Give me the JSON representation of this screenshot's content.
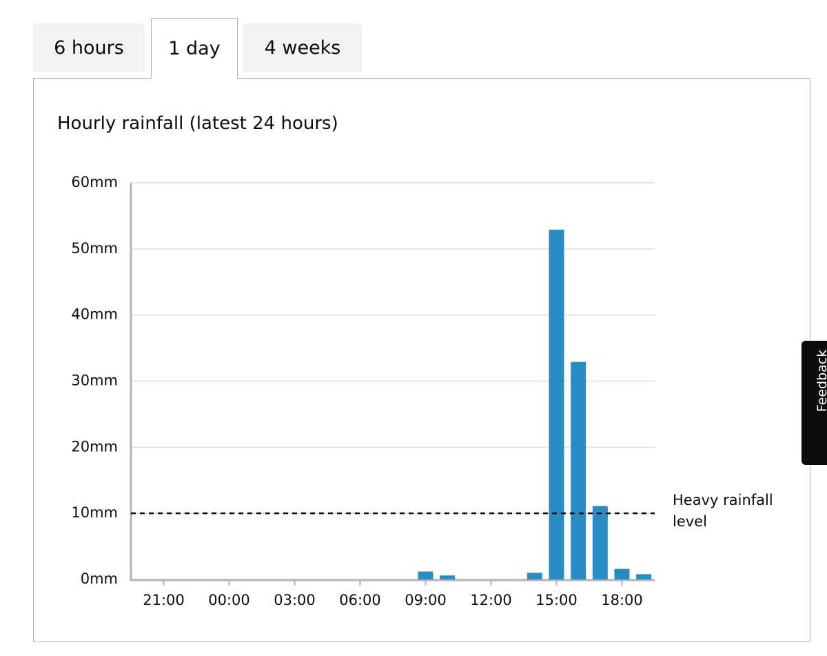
{
  "tabs": [
    {
      "label": "6 hours",
      "active": false
    },
    {
      "label": "1 day",
      "active": true
    },
    {
      "label": "4 weeks",
      "active": false
    }
  ],
  "feedback_tab": {
    "label": "Feedback"
  },
  "chart_data": {
    "type": "bar",
    "title": "Hourly rainfall (latest 24 hours)",
    "categories": [
      null,
      "21:00",
      null,
      null,
      "00:00",
      null,
      null,
      "03:00",
      null,
      null,
      "06:00",
      null,
      null,
      "09:00",
      null,
      null,
      "12:00",
      null,
      null,
      "15:00",
      null,
      null,
      "18:00",
      null
    ],
    "values": [
      0,
      0,
      0,
      0,
      0,
      0,
      0,
      0,
      0,
      0,
      0,
      0,
      0,
      1.2,
      0.6,
      0,
      0,
      0,
      1.0,
      52.9,
      32.9,
      11.1,
      1.6,
      0.8
    ],
    "color": "#2b8cc4",
    "ylim": [
      0,
      60
    ],
    "yticks": [
      {
        "value": 0,
        "label": "0mm"
      },
      {
        "value": 10,
        "label": "10mm"
      },
      {
        "value": 20,
        "label": "20mm"
      },
      {
        "value": 30,
        "label": "30mm"
      },
      {
        "value": 40,
        "label": "40mm"
      },
      {
        "value": 50,
        "label": "50mm"
      },
      {
        "value": 60,
        "label": "60mm"
      }
    ],
    "grid": true,
    "reference_line": {
      "value": 10,
      "label": "Heavy rainfall level"
    }
  }
}
